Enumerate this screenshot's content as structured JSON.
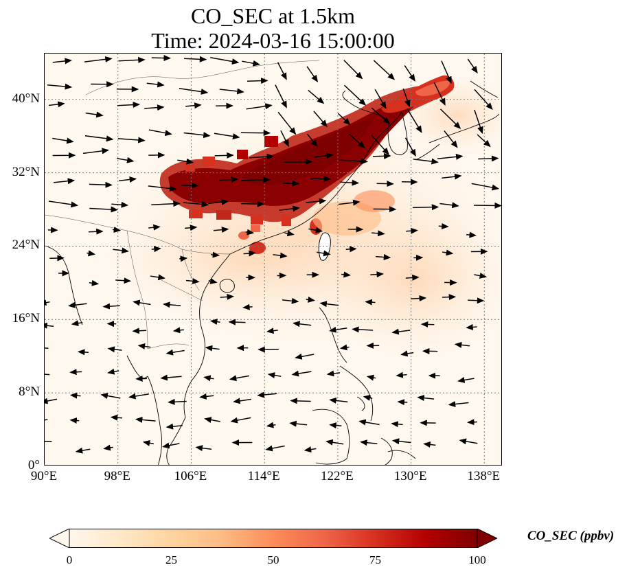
{
  "title": {
    "line1": "CO_SEC at 1.5km",
    "line2": "Time: 2024-03-16 15:00:00"
  },
  "map": {
    "extent": {
      "lon_min": 90,
      "lon_max": 140,
      "lat_min": 0,
      "lat_max": 45
    },
    "lat_ticks": [
      {
        "value": 0,
        "label": "0°"
      },
      {
        "value": 8,
        "label": "8°N"
      },
      {
        "value": 16,
        "label": "16°N"
      },
      {
        "value": 24,
        "label": "24°N"
      },
      {
        "value": 32,
        "label": "32°N"
      },
      {
        "value": 40,
        "label": "40°N"
      }
    ],
    "lon_ticks": [
      {
        "value": 90,
        "label": "90°E"
      },
      {
        "value": 98,
        "label": "98°E"
      },
      {
        "value": 106,
        "label": "106°E"
      },
      {
        "value": 114,
        "label": "114°E"
      },
      {
        "value": 122,
        "label": "122°E"
      },
      {
        "value": 130,
        "label": "130°E"
      },
      {
        "value": 138,
        "label": "138°E"
      }
    ],
    "gridlines": "dotted",
    "wind_vectors": "shown",
    "colors": {
      "background": "#fff8ef",
      "coast": "#000000",
      "grid": "#777777"
    }
  },
  "colorbar": {
    "label": "CO_SEC (ppbv)",
    "ticks": [
      "0",
      "25",
      "50",
      "75",
      "100"
    ],
    "colormap": "OrRd",
    "extend": "both",
    "colors": [
      "#fff7ec",
      "#fee8c8",
      "#fdd49e",
      "#fdbb84",
      "#fc8d59",
      "#ef6548",
      "#d7301f",
      "#b30000",
      "#7f0000"
    ]
  }
}
